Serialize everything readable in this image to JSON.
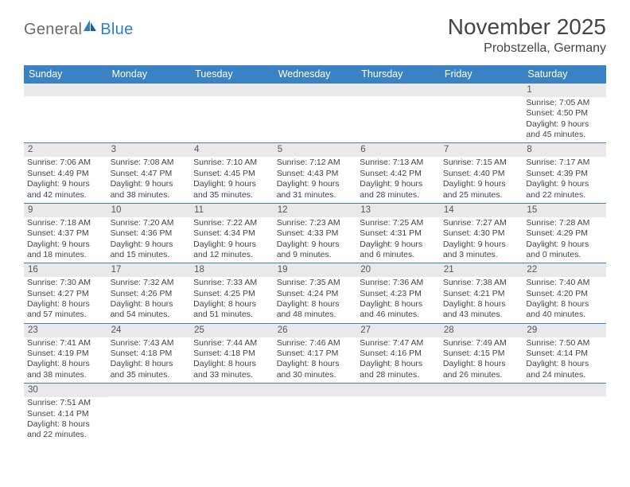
{
  "logo": {
    "general": "General",
    "blue": "Blue"
  },
  "title": {
    "month": "November 2025",
    "location": "Probstzella, Germany"
  },
  "colors": {
    "header_bg": "#3b82c4",
    "header_text": "#ffffff",
    "daynum_bg": "#e9e9e9",
    "row_border": "#3b82c4",
    "text": "#444444",
    "logo_gray": "#6a6a6a",
    "logo_blue": "#2f7ec0"
  },
  "daysOfWeek": [
    "Sunday",
    "Monday",
    "Tuesday",
    "Wednesday",
    "Thursday",
    "Friday",
    "Saturday"
  ],
  "weeks": [
    [
      null,
      null,
      null,
      null,
      null,
      null,
      {
        "n": "1",
        "sr": "Sunrise: 7:05 AM",
        "ss": "Sunset: 4:50 PM",
        "d1": "Daylight: 9 hours",
        "d2": "and 45 minutes."
      }
    ],
    [
      {
        "n": "2",
        "sr": "Sunrise: 7:06 AM",
        "ss": "Sunset: 4:49 PM",
        "d1": "Daylight: 9 hours",
        "d2": "and 42 minutes."
      },
      {
        "n": "3",
        "sr": "Sunrise: 7:08 AM",
        "ss": "Sunset: 4:47 PM",
        "d1": "Daylight: 9 hours",
        "d2": "and 38 minutes."
      },
      {
        "n": "4",
        "sr": "Sunrise: 7:10 AM",
        "ss": "Sunset: 4:45 PM",
        "d1": "Daylight: 9 hours",
        "d2": "and 35 minutes."
      },
      {
        "n": "5",
        "sr": "Sunrise: 7:12 AM",
        "ss": "Sunset: 4:43 PM",
        "d1": "Daylight: 9 hours",
        "d2": "and 31 minutes."
      },
      {
        "n": "6",
        "sr": "Sunrise: 7:13 AM",
        "ss": "Sunset: 4:42 PM",
        "d1": "Daylight: 9 hours",
        "d2": "and 28 minutes."
      },
      {
        "n": "7",
        "sr": "Sunrise: 7:15 AM",
        "ss": "Sunset: 4:40 PM",
        "d1": "Daylight: 9 hours",
        "d2": "and 25 minutes."
      },
      {
        "n": "8",
        "sr": "Sunrise: 7:17 AM",
        "ss": "Sunset: 4:39 PM",
        "d1": "Daylight: 9 hours",
        "d2": "and 22 minutes."
      }
    ],
    [
      {
        "n": "9",
        "sr": "Sunrise: 7:18 AM",
        "ss": "Sunset: 4:37 PM",
        "d1": "Daylight: 9 hours",
        "d2": "and 18 minutes."
      },
      {
        "n": "10",
        "sr": "Sunrise: 7:20 AM",
        "ss": "Sunset: 4:36 PM",
        "d1": "Daylight: 9 hours",
        "d2": "and 15 minutes."
      },
      {
        "n": "11",
        "sr": "Sunrise: 7:22 AM",
        "ss": "Sunset: 4:34 PM",
        "d1": "Daylight: 9 hours",
        "d2": "and 12 minutes."
      },
      {
        "n": "12",
        "sr": "Sunrise: 7:23 AM",
        "ss": "Sunset: 4:33 PM",
        "d1": "Daylight: 9 hours",
        "d2": "and 9 minutes."
      },
      {
        "n": "13",
        "sr": "Sunrise: 7:25 AM",
        "ss": "Sunset: 4:31 PM",
        "d1": "Daylight: 9 hours",
        "d2": "and 6 minutes."
      },
      {
        "n": "14",
        "sr": "Sunrise: 7:27 AM",
        "ss": "Sunset: 4:30 PM",
        "d1": "Daylight: 9 hours",
        "d2": "and 3 minutes."
      },
      {
        "n": "15",
        "sr": "Sunrise: 7:28 AM",
        "ss": "Sunset: 4:29 PM",
        "d1": "Daylight: 9 hours",
        "d2": "and 0 minutes."
      }
    ],
    [
      {
        "n": "16",
        "sr": "Sunrise: 7:30 AM",
        "ss": "Sunset: 4:27 PM",
        "d1": "Daylight: 8 hours",
        "d2": "and 57 minutes."
      },
      {
        "n": "17",
        "sr": "Sunrise: 7:32 AM",
        "ss": "Sunset: 4:26 PM",
        "d1": "Daylight: 8 hours",
        "d2": "and 54 minutes."
      },
      {
        "n": "18",
        "sr": "Sunrise: 7:33 AM",
        "ss": "Sunset: 4:25 PM",
        "d1": "Daylight: 8 hours",
        "d2": "and 51 minutes."
      },
      {
        "n": "19",
        "sr": "Sunrise: 7:35 AM",
        "ss": "Sunset: 4:24 PM",
        "d1": "Daylight: 8 hours",
        "d2": "and 48 minutes."
      },
      {
        "n": "20",
        "sr": "Sunrise: 7:36 AM",
        "ss": "Sunset: 4:23 PM",
        "d1": "Daylight: 8 hours",
        "d2": "and 46 minutes."
      },
      {
        "n": "21",
        "sr": "Sunrise: 7:38 AM",
        "ss": "Sunset: 4:21 PM",
        "d1": "Daylight: 8 hours",
        "d2": "and 43 minutes."
      },
      {
        "n": "22",
        "sr": "Sunrise: 7:40 AM",
        "ss": "Sunset: 4:20 PM",
        "d1": "Daylight: 8 hours",
        "d2": "and 40 minutes."
      }
    ],
    [
      {
        "n": "23",
        "sr": "Sunrise: 7:41 AM",
        "ss": "Sunset: 4:19 PM",
        "d1": "Daylight: 8 hours",
        "d2": "and 38 minutes."
      },
      {
        "n": "24",
        "sr": "Sunrise: 7:43 AM",
        "ss": "Sunset: 4:18 PM",
        "d1": "Daylight: 8 hours",
        "d2": "and 35 minutes."
      },
      {
        "n": "25",
        "sr": "Sunrise: 7:44 AM",
        "ss": "Sunset: 4:18 PM",
        "d1": "Daylight: 8 hours",
        "d2": "and 33 minutes."
      },
      {
        "n": "26",
        "sr": "Sunrise: 7:46 AM",
        "ss": "Sunset: 4:17 PM",
        "d1": "Daylight: 8 hours",
        "d2": "and 30 minutes."
      },
      {
        "n": "27",
        "sr": "Sunrise: 7:47 AM",
        "ss": "Sunset: 4:16 PM",
        "d1": "Daylight: 8 hours",
        "d2": "and 28 minutes."
      },
      {
        "n": "28",
        "sr": "Sunrise: 7:49 AM",
        "ss": "Sunset: 4:15 PM",
        "d1": "Daylight: 8 hours",
        "d2": "and 26 minutes."
      },
      {
        "n": "29",
        "sr": "Sunrise: 7:50 AM",
        "ss": "Sunset: 4:14 PM",
        "d1": "Daylight: 8 hours",
        "d2": "and 24 minutes."
      }
    ],
    [
      {
        "n": "30",
        "sr": "Sunrise: 7:51 AM",
        "ss": "Sunset: 4:14 PM",
        "d1": "Daylight: 8 hours",
        "d2": "and 22 minutes."
      },
      null,
      null,
      null,
      null,
      null,
      null
    ]
  ]
}
